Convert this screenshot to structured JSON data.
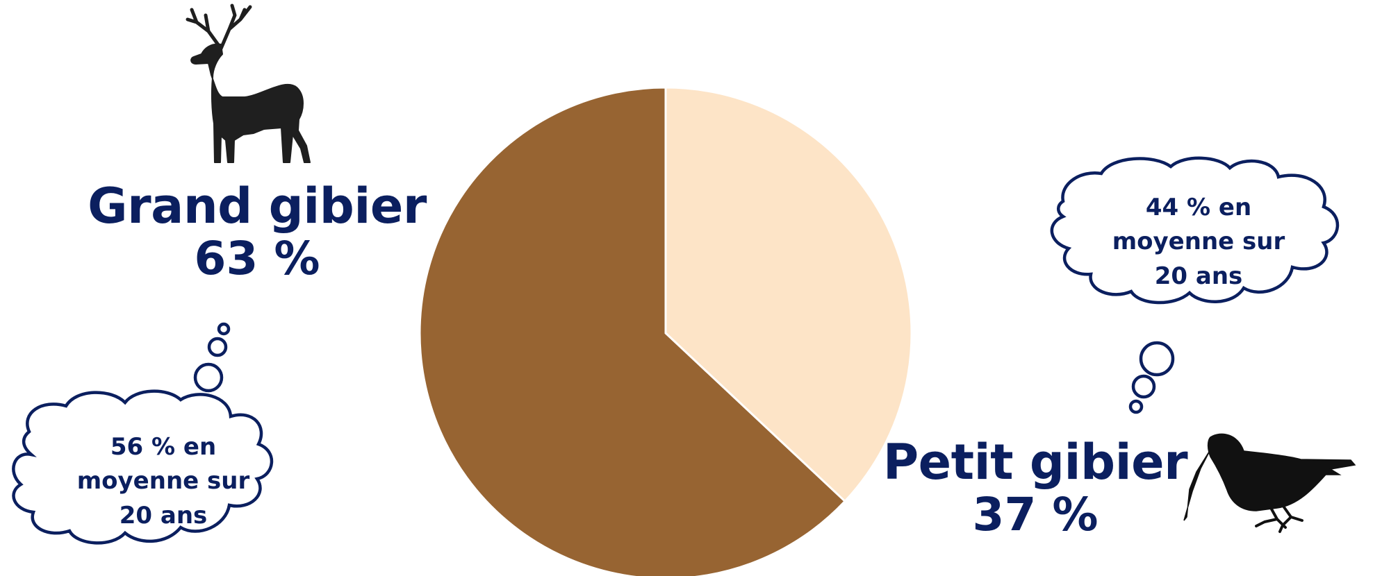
{
  "chart_data": {
    "type": "pie",
    "slices": [
      {
        "label": "Petit gibier",
        "value": 37,
        "display": "37 %",
        "color": "#fde4c7"
      },
      {
        "label": "Grand gibier",
        "value": 63,
        "display": "63 %",
        "color": "#976432"
      }
    ],
    "start": "top",
    "direction": "clockwise"
  },
  "annotations": {
    "grand_average": "56 % en moyenne sur 20 ans",
    "petit_average": "44 % en moyenne sur 20 ans",
    "grand_average_lines": [
      "56 % en",
      "moyenne sur",
      "20 ans"
    ],
    "petit_average_lines": [
      "44 % en",
      "moyenne sur",
      "20 ans"
    ]
  },
  "icons": {
    "grand": "deer-icon",
    "petit": "woodcock-icon"
  },
  "colors": {
    "text": "#0b1f5f",
    "cloud_stroke": "#0b1f5f",
    "silhouette": "#1f1f1f"
  }
}
